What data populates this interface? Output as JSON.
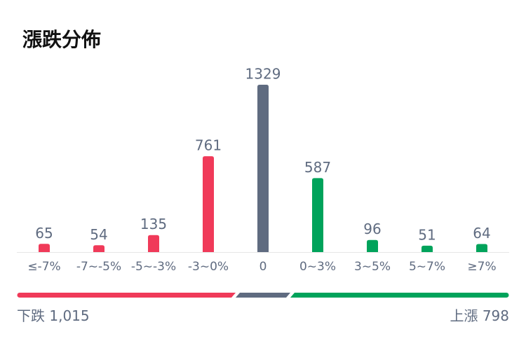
{
  "chart_data": {
    "type": "bar",
    "title": "漲跌分佈",
    "categories": [
      "≤-7%",
      "-7~-5%",
      "-5~-3%",
      "-3~0%",
      "0",
      "0~3%",
      "3~5%",
      "5~7%",
      "≥7%"
    ],
    "values": [
      65,
      54,
      135,
      761,
      1329,
      587,
      96,
      51,
      64
    ],
    "colors": [
      "#f03a59",
      "#f03a59",
      "#f03a59",
      "#f03a59",
      "#5f6b80",
      "#00a35b",
      "#00a35b",
      "#00a35b",
      "#00a35b"
    ]
  },
  "summary": {
    "down_label": "下跌",
    "down_count": "1,015",
    "up_label": "上漲",
    "up_count": "798"
  }
}
